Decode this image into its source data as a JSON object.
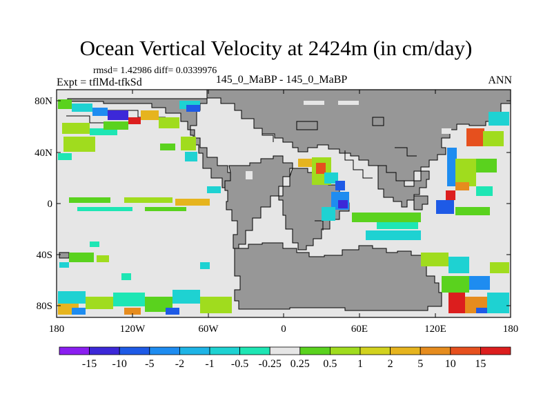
{
  "title": "Ocean Vertical Velocity at 2424m (in cm/day)",
  "stats_line": "rmsd= 1.42986 diff= 0.0339976",
  "expt_line": "Expt = tflMd-tfkSd",
  "subtitle": "145_0_MaBP - 145_0_MaBP",
  "season": "ANN",
  "lat_ticks": [
    "80N",
    "40N",
    "0",
    "40S",
    "80S"
  ],
  "lon_ticks": [
    "180",
    "120W",
    "60W",
    "0",
    "60E",
    "120E",
    "180"
  ],
  "colorbar": {
    "labels": [
      "-15",
      "-10",
      "-5",
      "-2",
      "-1",
      "-0.5",
      "-0.25",
      "0.25",
      "0.5",
      "1",
      "2",
      "5",
      "10",
      "15"
    ],
    "colors": [
      "#8a1ef0",
      "#3c28d8",
      "#1e5ae6",
      "#1e8cf0",
      "#1eb4e6",
      "#1ed2d2",
      "#1ee6b4",
      "#e6e6e6",
      "#5ad21e",
      "#a0dc1e",
      "#d2d21e",
      "#e6b41e",
      "#e68c1e",
      "#e6501e",
      "#dc1e1e"
    ]
  },
  "map_colors": {
    "land": "#979797",
    "ocean_near_zero": "#e6e6e6",
    "coastline": "#000000"
  }
}
